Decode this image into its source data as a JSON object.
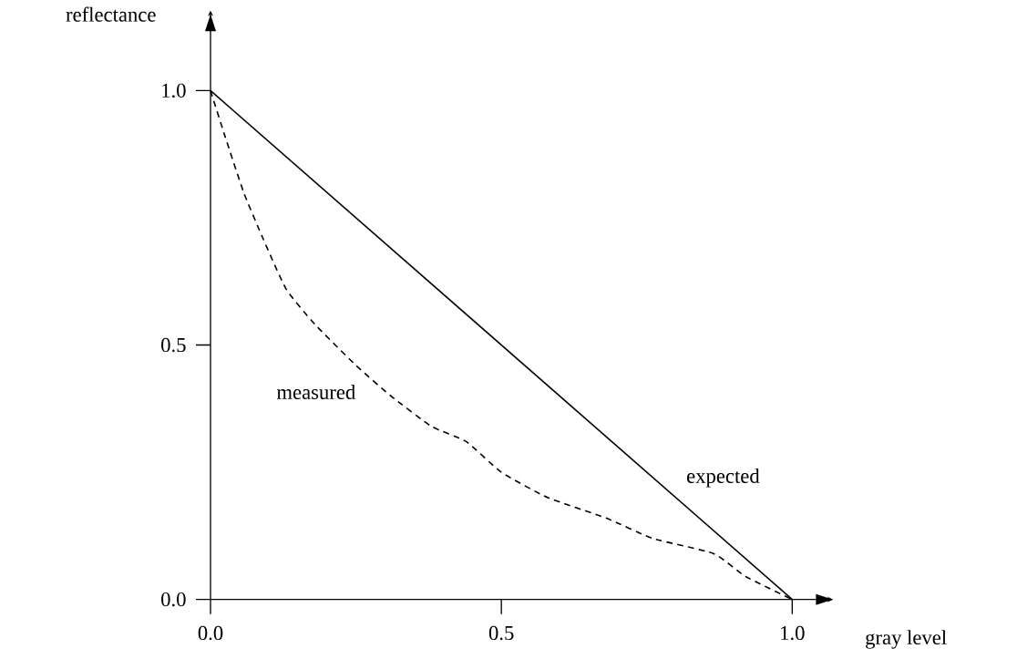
{
  "chart_data": {
    "type": "line",
    "xlabel": "gray level",
    "ylabel": "reflectance",
    "xlim": [
      0,
      1.07
    ],
    "ylim": [
      0,
      1.15
    ],
    "xticks": [
      {
        "value": 0,
        "label": "0.0"
      },
      {
        "value": 0.5,
        "label": "0.5"
      },
      {
        "value": 1,
        "label": "1.0"
      }
    ],
    "yticks": [
      {
        "value": 0,
        "label": "0.0"
      },
      {
        "value": 0.5,
        "label": "0.5"
      },
      {
        "value": 1,
        "label": "1.0"
      }
    ],
    "grid": false,
    "legend": false,
    "marker": "none",
    "series": [
      {
        "name": "expected",
        "color": "#000000",
        "line_style": "solid",
        "x": [
          0,
          1
        ],
        "values": [
          1,
          0
        ]
      },
      {
        "name": "measured",
        "color": "#000000",
        "line_style": "dashed",
        "x": [
          0,
          0.025,
          0.057,
          0.09,
          0.13,
          0.18,
          0.25,
          0.31,
          0.38,
          0.44,
          0.5,
          0.58,
          0.68,
          0.76,
          0.865,
          0.92,
          1.0
        ],
        "values": [
          1.0,
          0.91,
          0.8,
          0.71,
          0.61,
          0.54,
          0.46,
          0.4,
          0.34,
          0.31,
          0.25,
          0.2,
          0.16,
          0.12,
          0.09,
          0.045,
          0
        ]
      }
    ]
  }
}
